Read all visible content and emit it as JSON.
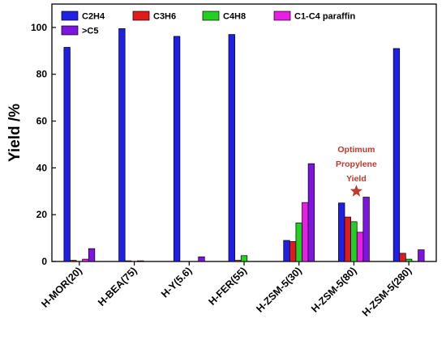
{
  "chart_data": {
    "type": "bar",
    "ylabel": "Yield /%",
    "ylim": [
      0,
      110
    ],
    "yticks": [
      "0",
      "20",
      "40",
      "60",
      "80",
      "100"
    ],
    "categories": [
      "H-MOR(20)",
      "H-BEA(75)",
      "H-Y(5.6)",
      "H-FER(55)",
      "H-ZSM-5(30)",
      "H-ZSM-5(80)",
      "H-ZSM-5(280)"
    ],
    "series": [
      {
        "name": "C2H4",
        "color": "#1f1fe6",
        "values": [
          91.5,
          99.5,
          96.2,
          97.0,
          9.0,
          25.0,
          91.0
        ]
      },
      {
        "name": "C3H6",
        "color": "#e01b1b",
        "values": [
          0.5,
          0.3,
          0.0,
          0.5,
          8.5,
          19.0,
          3.5
        ]
      },
      {
        "name": "C4H8",
        "color": "#22d022",
        "values": [
          0.0,
          0.0,
          0.0,
          2.5,
          16.5,
          17.0,
          1.0
        ]
      },
      {
        "name": "C1-C4 paraffin",
        "color": "#e61ee6",
        "values": [
          1.0,
          0.3,
          0.0,
          0.0,
          25.2,
          12.5,
          0.0
        ]
      },
      {
        "name": ">C5",
        "color": "#7d14e0",
        "values": [
          5.5,
          0.0,
          2.0,
          0.0,
          41.8,
          27.5,
          5.0
        ]
      }
    ],
    "legend_position": "top-left",
    "grid": false,
    "annotation": {
      "lines": [
        "Optimum",
        "Propylene",
        "Yield"
      ],
      "marker": "star",
      "color": "#c0392b",
      "category": "H-ZSM-5(80)",
      "star_value": 30
    }
  }
}
